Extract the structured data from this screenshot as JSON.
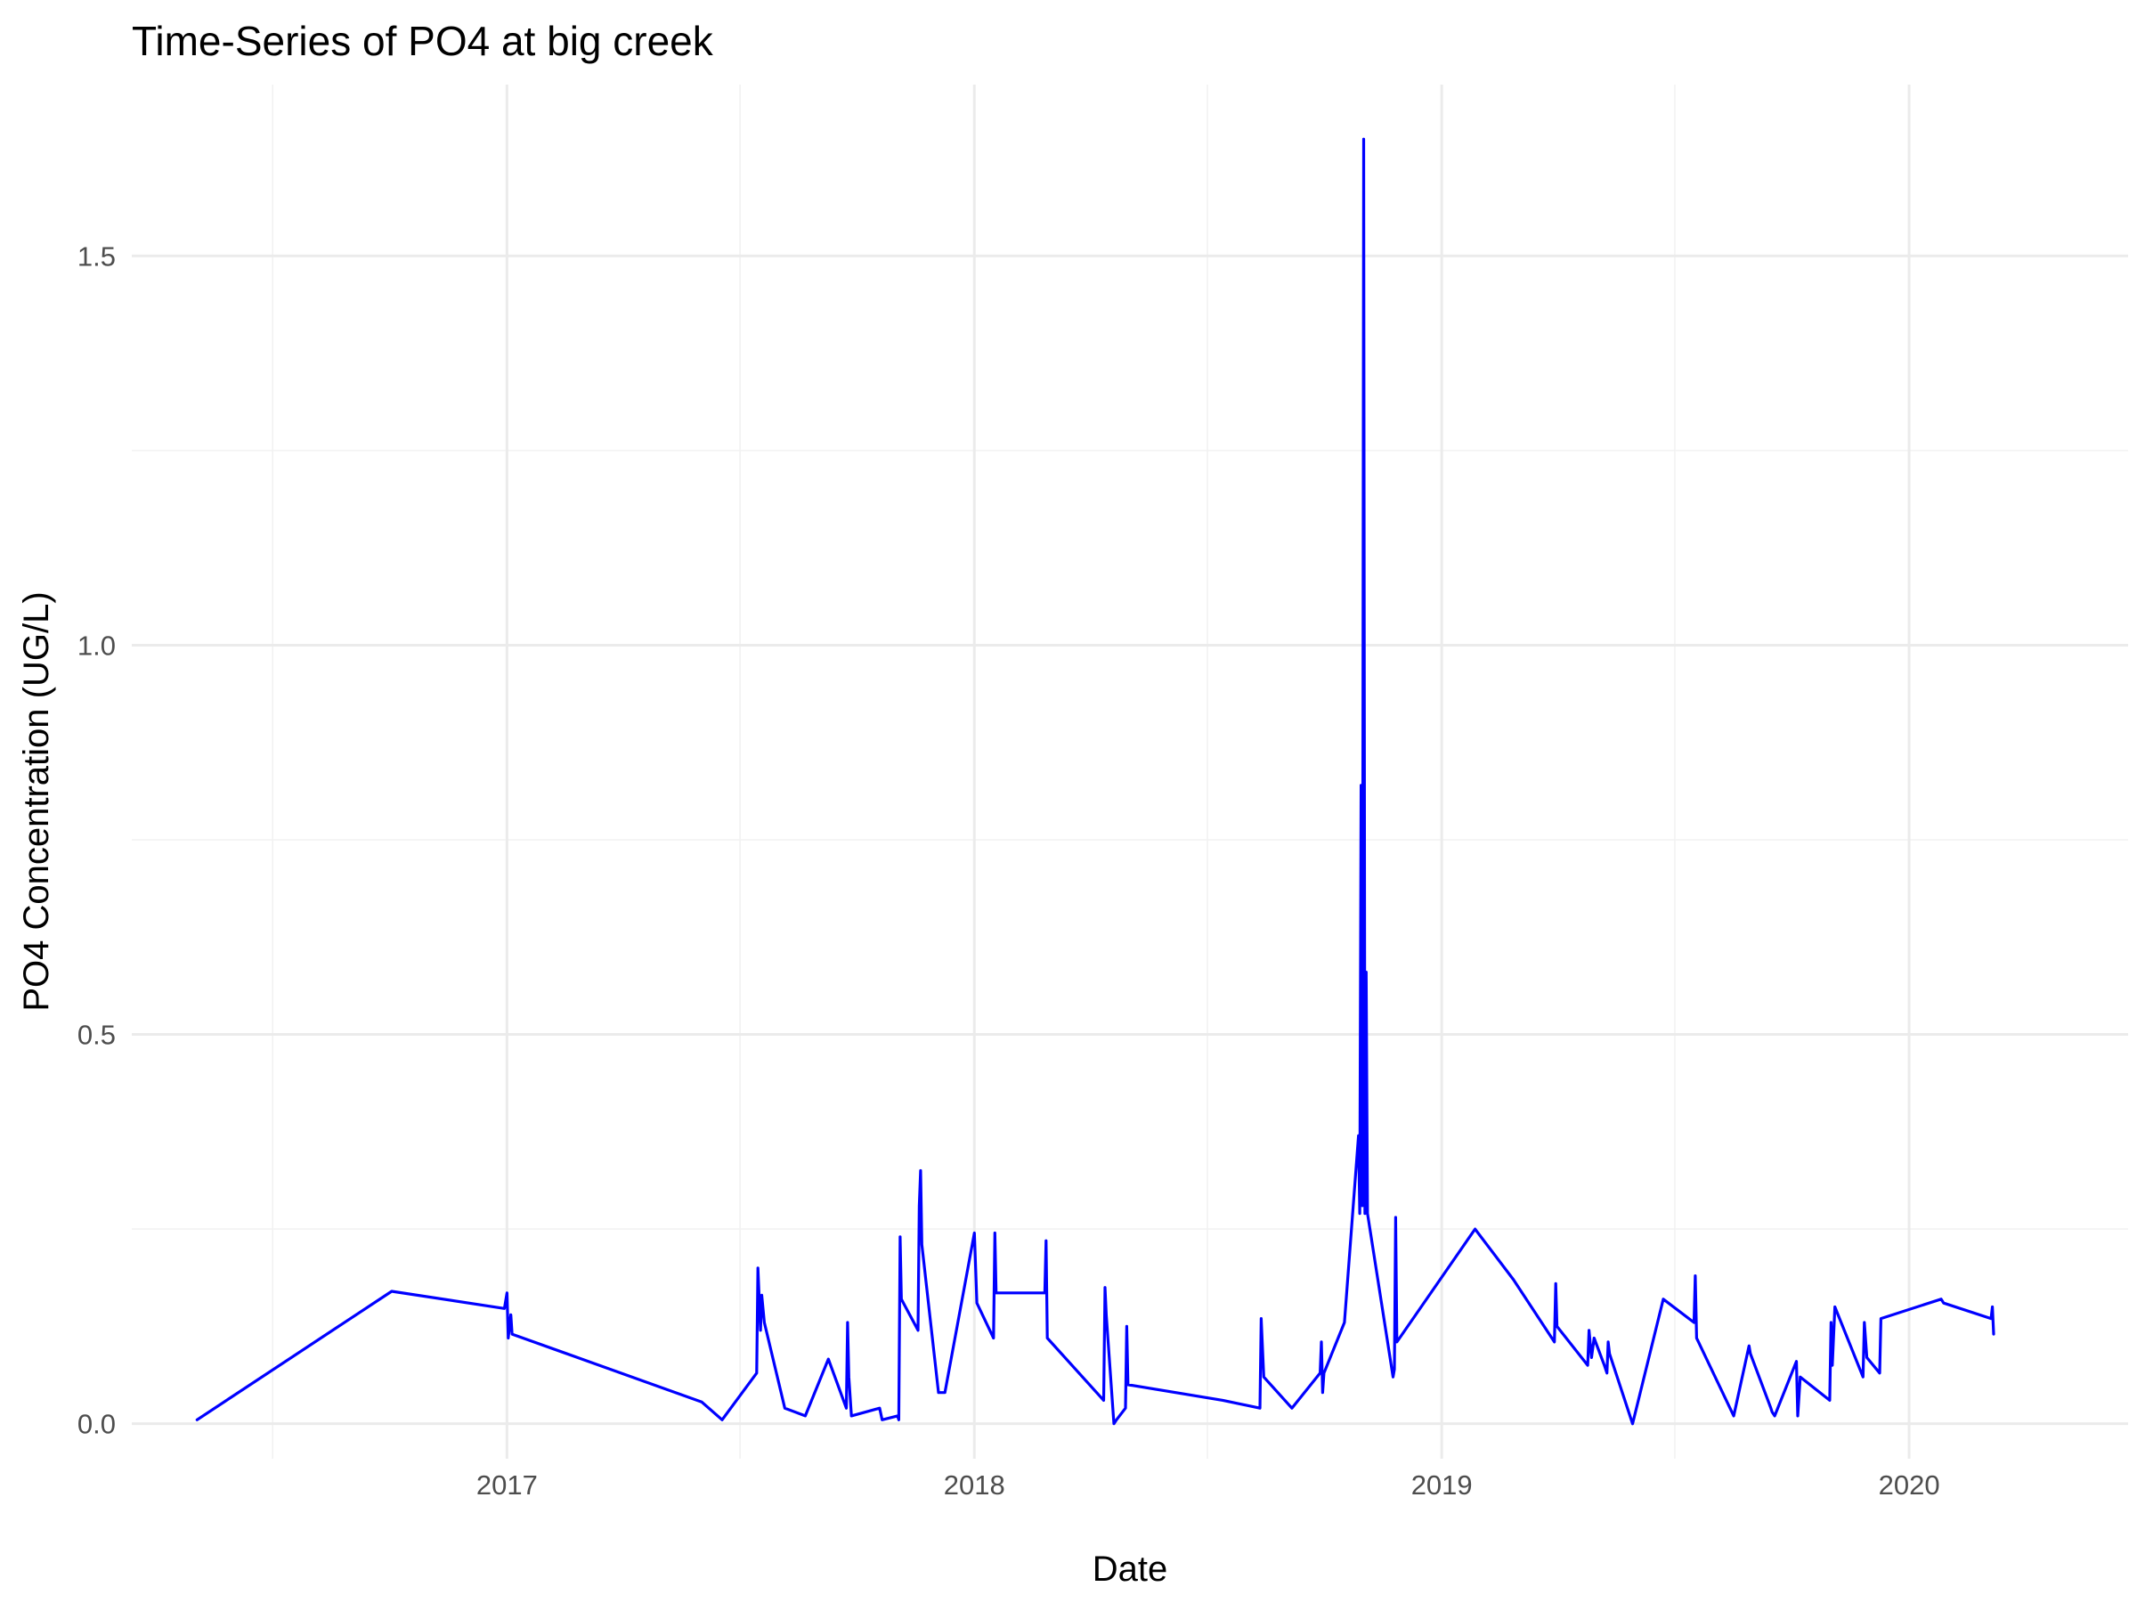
{
  "chart_data": {
    "type": "line",
    "title": "Time-Series of PO4 at big creek",
    "xlabel": "Date",
    "ylabel": "PO4 Concentration (UG/L)",
    "x_tick_labels": [
      "2017",
      "2018",
      "2019",
      "2020"
    ],
    "y_tick_labels": [
      "0.0",
      "0.5",
      "1.0",
      "1.5"
    ],
    "y_ticks": [
      0,
      0.5,
      1.0,
      1.5
    ],
    "xlim": [
      "2016-03-14",
      "2020-06-20"
    ],
    "ylim": [
      -0.045,
      1.72
    ],
    "grid": true,
    "line_color": "#0000ff",
    "series": [
      {
        "x": [
          "2016-05-04",
          "2016-10-03",
          "2016-12-30",
          "2017-01-01",
          "2017-01-02",
          "2017-01-04",
          "2017-01-05",
          "2017-06-02",
          "2017-06-18",
          "2017-07-15",
          "2017-07-16",
          "2017-07-18",
          "2017-07-19",
          "2017-07-21",
          "2017-08-06",
          "2017-08-22",
          "2017-09-09",
          "2017-09-23",
          "2017-09-24",
          "2017-09-25",
          "2017-09-27",
          "2017-10-19",
          "2017-10-21",
          "2017-11-02",
          "2017-11-03",
          "2017-11-04",
          "2017-11-05",
          "2017-11-18",
          "2017-11-19",
          "2017-11-20",
          "2017-11-21",
          "2017-12-04",
          "2017-12-09",
          "2018-01-01",
          "2018-01-03",
          "2018-01-16",
          "2018-01-17",
          "2018-01-18",
          "2018-02-25",
          "2018-02-26",
          "2018-02-27",
          "2018-04-12",
          "2018-04-13",
          "2018-04-14",
          "2018-04-20",
          "2018-04-22",
          "2018-04-29",
          "2018-04-30",
          "2018-05-01",
          "2018-07-14",
          "2018-08-12",
          "2018-08-13",
          "2018-08-15",
          "2018-09-06",
          "2018-09-28",
          "2018-09-29",
          "2018-09-30",
          "2018-10-01",
          "2018-10-17",
          "2018-10-28",
          "2018-10-29",
          "2018-10-30",
          "2018-10-31",
          "2018-11-01",
          "2018-11-02",
          "2018-11-03",
          "2018-11-04",
          "2018-11-24",
          "2018-11-25",
          "2018-11-26",
          "2018-11-27",
          "2019-01-27",
          "2019-02-26",
          "2019-03-30",
          "2019-03-31",
          "2019-04-01",
          "2019-04-25",
          "2019-04-26",
          "2019-04-28",
          "2019-04-30",
          "2019-05-08",
          "2019-05-10",
          "2019-05-11",
          "2019-05-12",
          "2019-05-30",
          "2019-06-23",
          "2019-07-17",
          "2019-07-18",
          "2019-07-19",
          "2019-08-17",
          "2019-08-29",
          "2019-08-30",
          "2019-09-15",
          "2019-09-16",
          "2019-09-18",
          "2019-10-05",
          "2019-10-06",
          "2019-10-08",
          "2019-10-31",
          "2019-11-01",
          "2019-11-02",
          "2019-11-04",
          "2019-11-26",
          "2019-11-27",
          "2019-11-29",
          "2019-12-09",
          "2019-12-10",
          "2020-01-26",
          "2020-01-28",
          "2020-03-05",
          "2020-03-06",
          "2020-03-07"
        ],
        "y": [
          0.005,
          0.17,
          0.148,
          0.168,
          0.11,
          0.14,
          0.115,
          0.028,
          0.005,
          0.065,
          0.2,
          0.12,
          0.165,
          0.13,
          0.02,
          0.01,
          0.083,
          0.02,
          0.13,
          0.06,
          0.01,
          0.02,
          0.005,
          0.01,
          0.005,
          0.24,
          0.16,
          0.12,
          0.28,
          0.325,
          0.23,
          0.04,
          0.04,
          0.245,
          0.155,
          0.11,
          0.245,
          0.168,
          0.168,
          0.235,
          0.11,
          0.03,
          0.175,
          0.14,
          0.0,
          0.005,
          0.02,
          0.125,
          0.05,
          0.03,
          0.02,
          0.135,
          0.06,
          0.02,
          0.065,
          0.105,
          0.04,
          0.065,
          0.13,
          0.37,
          0.27,
          0.82,
          0.28,
          1.65,
          0.27,
          0.58,
          0.27,
          0.06,
          0.07,
          0.265,
          0.105,
          0.25,
          0.185,
          0.105,
          0.18,
          0.125,
          0.075,
          0.12,
          0.085,
          0.11,
          0.075,
          0.065,
          0.105,
          0.09,
          0.0,
          0.16,
          0.13,
          0.19,
          0.11,
          0.01,
          0.1,
          0.09,
          0.02,
          0.015,
          0.01,
          0.08,
          0.01,
          0.06,
          0.03,
          0.13,
          0.075,
          0.15,
          0.06,
          0.13,
          0.085,
          0.065,
          0.135,
          0.16,
          0.155,
          0.135,
          0.15,
          0.115
        ]
      }
    ]
  }
}
